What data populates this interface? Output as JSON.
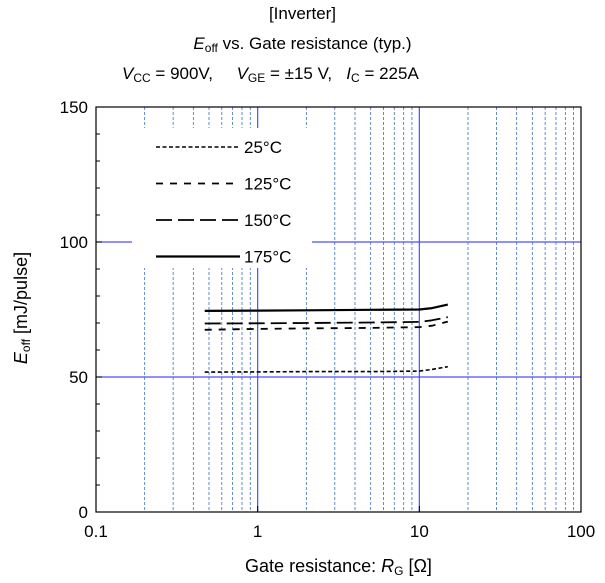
{
  "header": {
    "line1": "[Inverter]",
    "line2_sym": "E",
    "line2_sub": "off",
    "line2_rest": " vs. Gate resistance  (typ.)",
    "cond": [
      {
        "sym": "V",
        "sub": "CC",
        "text": "=  900V,"
      },
      {
        "sym": "V",
        "sub": "GE",
        "text": "= ±15 V,"
      },
      {
        "sym": "I",
        "sub": "C",
        "text": "=  225A"
      }
    ]
  },
  "axes": {
    "ylabel_sym": "E",
    "ylabel_sub": "off",
    "ylabel_rest": " [mJ/pulse]",
    "xlabel_pre": "Gate resistance: ",
    "xlabel_sym": "R",
    "xlabel_sub": "G",
    "xlabel_post": " [Ω]"
  },
  "chart_data": {
    "type": "line",
    "x_scale": "log",
    "xlim": [
      0.1,
      100
    ],
    "ylim": [
      0,
      150
    ],
    "x_ticks": [
      0.1,
      1,
      10,
      100
    ],
    "x_tick_labels": [
      "0.1",
      "1",
      "10",
      "100"
    ],
    "y_ticks": [
      0,
      50,
      100,
      150
    ],
    "y_tick_labels": [
      "0",
      "50",
      "100",
      "150"
    ],
    "grid": true,
    "legend_position": "top-left",
    "series": [
      {
        "name": "25°C",
        "dash": "dotted-short",
        "x": [
          0.47,
          1,
          2,
          5,
          10,
          12,
          15
        ],
        "y": [
          51.8,
          51.9,
          52,
          52,
          52.2,
          52.8,
          53.8
        ]
      },
      {
        "name": "125°C",
        "dash": "short",
        "x": [
          0.47,
          1,
          2,
          5,
          10,
          12,
          15
        ],
        "y": [
          67.5,
          67.8,
          68,
          68.2,
          68.5,
          69,
          70.5
        ]
      },
      {
        "name": "150°C",
        "dash": "long",
        "x": [
          0.47,
          1,
          2,
          5,
          10,
          12,
          15
        ],
        "y": [
          69.8,
          69.9,
          70,
          70.2,
          70.4,
          71,
          72.2
        ]
      },
      {
        "name": "175°C",
        "dash": "solid",
        "x": [
          0.47,
          1,
          2,
          5,
          10,
          12,
          15
        ],
        "y": [
          74.5,
          74.6,
          74.7,
          74.9,
          75,
          75.5,
          76.8
        ]
      }
    ]
  },
  "colors": {
    "major_grid": "#4d4dff",
    "minor_grid": "#3c6fbf",
    "frame": "#000000",
    "lines": "#000000"
  }
}
